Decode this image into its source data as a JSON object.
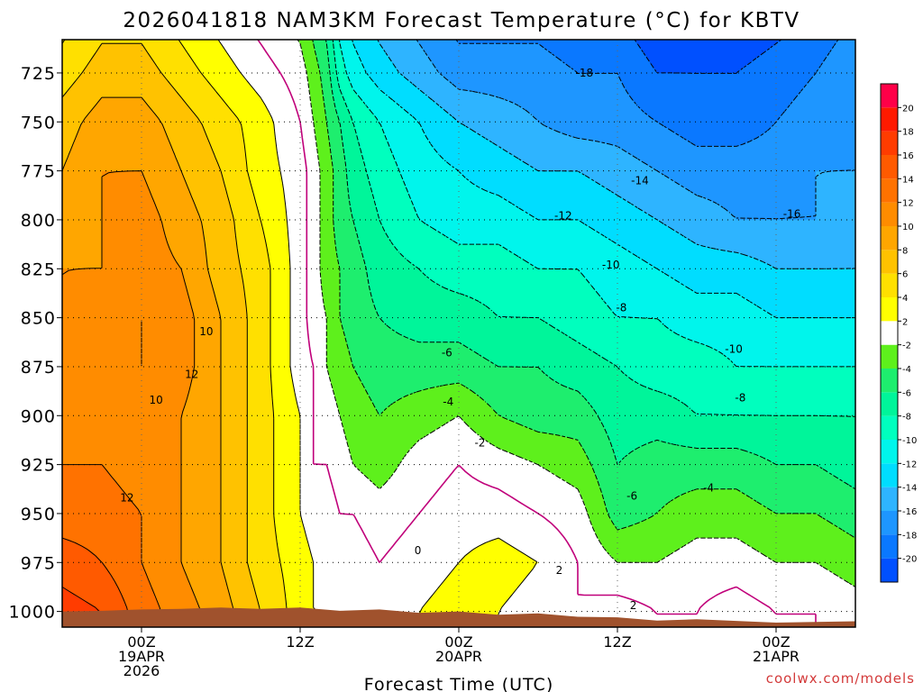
{
  "chart_data": {
    "type": "heatmap",
    "title": "2026041818 NAM3KM Forecast Temperature (°C) for KBTV",
    "xlabel": "Forecast Time (UTC)",
    "ylabel": "",
    "x_unit": "hours from 18Z 18APR2026",
    "xlim": [
      0,
      60
    ],
    "ylim": [
      1008,
      708
    ],
    "yticks": [
      725,
      750,
      775,
      800,
      825,
      850,
      875,
      900,
      925,
      950,
      975,
      1000
    ],
    "ytick_labels": [
      "725",
      "750",
      "775",
      "800",
      "825",
      "850",
      "875",
      "900",
      "925",
      "950",
      "975",
      "1000"
    ],
    "xticks": [
      {
        "x": 6,
        "lines": [
          "00Z",
          "19APR",
          "2026"
        ]
      },
      {
        "x": 18,
        "lines": [
          "12Z"
        ]
      },
      {
        "x": 30,
        "lines": [
          "00Z",
          "20APR"
        ]
      },
      {
        "x": 42,
        "lines": [
          "12Z"
        ]
      },
      {
        "x": 54,
        "lines": [
          "00Z",
          "21APR"
        ]
      }
    ],
    "colorbar": {
      "levels": [
        -22,
        -20,
        -18,
        -16,
        -14,
        -12,
        -10,
        -8,
        -6,
        -4,
        -2,
        2,
        4,
        6,
        8,
        10,
        12,
        14,
        16,
        18,
        20,
        22
      ],
      "labels": [
        "-20",
        "-18",
        "-16",
        "-14",
        "-12",
        "-10",
        "-8",
        "-6",
        "-4",
        "-2",
        "2",
        "4",
        "6",
        "8",
        "10",
        "12",
        "14",
        "16",
        "18",
        "20"
      ],
      "colors": [
        "#0050ff",
        "#0a78ff",
        "#1e96ff",
        "#2eb4ff",
        "#00ddff",
        "#00f5ec",
        "#00ffbe",
        "#00f59a",
        "#1eee6e",
        "#5ef01c",
        "#ffffff",
        "#ffff00",
        "#ffe000",
        "#ffc200",
        "#ffa600",
        "#ff8c00",
        "#ff7200",
        "#ff5a00",
        "#ff3c00",
        "#ff1a00",
        "#ff0048"
      ]
    },
    "ground_color": "#a0522d",
    "surface_pressure_hpa": [
      1000,
      999,
      999,
      998,
      998,
      998,
      998,
      999,
      999,
      1000,
      1000,
      1001,
      1001,
      1002,
      1003,
      1004,
      1004,
      1005,
      1005
    ],
    "surface_x_hours": [
      0,
      3,
      6,
      9,
      12,
      15,
      18,
      21,
      24,
      27,
      30,
      33,
      36,
      39,
      42,
      45,
      48,
      54,
      60
    ],
    "temperature_grid": {
      "pressure_hpa": [
        710,
        725,
        750,
        775,
        800,
        825,
        850,
        875,
        900,
        925,
        950,
        975,
        1000,
        1008
      ],
      "times_hours": [
        0,
        3,
        6,
        9,
        12,
        15,
        18,
        19,
        20,
        21,
        22,
        24,
        27,
        30,
        33,
        36,
        39,
        42,
        45,
        48,
        51,
        54,
        57,
        60
      ],
      "rows": [
        [
          4,
          6,
          6,
          4,
          2,
          0,
          -2,
          -4,
          -6,
          -10,
          -12,
          -14,
          -16,
          -18,
          -18,
          -18,
          -19,
          -19,
          -21,
          -21,
          -21,
          -20,
          -19,
          -17
        ],
        [
          5,
          7,
          7,
          5,
          3,
          1,
          -1,
          -3,
          -5,
          -9,
          -11,
          -13,
          -15,
          -17,
          -17,
          -17,
          -18,
          -18,
          -20,
          -20,
          -20,
          -19,
          -18,
          -16
        ],
        [
          7,
          9,
          9,
          7,
          5,
          3,
          0,
          -2,
          -4,
          -6,
          -8,
          -10,
          -12,
          -14,
          -15,
          -16,
          -17,
          -17,
          -18,
          -19,
          -19,
          -18,
          -17,
          -16
        ],
        [
          8,
          10,
          10,
          8,
          6,
          3,
          1,
          -1,
          -3,
          -5,
          -7,
          -9,
          -11,
          -12,
          -13,
          -14,
          -14,
          -15,
          -16,
          -17,
          -17,
          -17,
          -16,
          -16
        ],
        [
          9,
          10,
          11,
          9,
          7,
          4,
          1,
          -1,
          -3,
          -5,
          -6,
          -8,
          -10,
          -11,
          -11,
          -12,
          -12,
          -13,
          -14,
          -15,
          -16,
          -16,
          -16,
          -15
        ],
        [
          10,
          10,
          11,
          10,
          7,
          5,
          1,
          -1,
          -3,
          -4,
          -5,
          -7,
          -8,
          -9,
          -9,
          -10,
          -10,
          -11,
          -12,
          -13,
          -13,
          -14,
          -14,
          -14
        ],
        [
          10,
          11,
          12,
          11,
          8,
          5,
          1,
          -1,
          -2,
          -4,
          -5,
          -6,
          -7,
          -7,
          -8,
          -8,
          -9,
          -10,
          -10,
          -11,
          -11,
          -12,
          -12,
          -12
        ],
        [
          10,
          11,
          12,
          11,
          8,
          5,
          1,
          0,
          -2,
          -3,
          -4,
          -5,
          -5,
          -5,
          -6,
          -6,
          -7,
          -8,
          -9,
          -9,
          -10,
          -10,
          -10,
          -10
        ],
        [
          11,
          11,
          11,
          10,
          8,
          5,
          2,
          0,
          -1,
          -2,
          -3,
          -4,
          -3,
          -2,
          -4,
          -5,
          -5,
          -7,
          -7,
          -8,
          -8,
          -8,
          -8,
          -8
        ],
        [
          12,
          12,
          11,
          10,
          8,
          5,
          2,
          0,
          0,
          -1,
          -2,
          -3,
          -1,
          0,
          -1,
          -2,
          -3,
          -6,
          -5,
          -5,
          -5,
          -6,
          -6,
          -7
        ],
        [
          13,
          13,
          12,
          10,
          8,
          5,
          2,
          1,
          1,
          0,
          0,
          -1,
          0,
          1,
          1,
          0,
          -1,
          -5,
          -4,
          -3,
          -3,
          -4,
          -4,
          -5
        ],
        [
          15,
          14,
          12,
          10,
          8,
          5,
          3,
          2,
          1,
          1,
          1,
          0,
          1,
          2,
          3,
          2,
          0,
          -2,
          -2,
          -1,
          -1,
          -2,
          -2,
          -3
        ],
        [
          17,
          16,
          13,
          11,
          9,
          6,
          3,
          2,
          2,
          2,
          2,
          1,
          2,
          3,
          2,
          1,
          0,
          1,
          0,
          0,
          1,
          0,
          0,
          -1
        ],
        [
          17,
          16,
          13,
          11,
          9,
          6,
          3,
          2,
          2,
          2,
          2,
          1,
          2,
          3,
          2,
          1,
          0,
          1,
          0,
          0,
          1,
          0,
          0,
          -1
        ]
      ]
    },
    "contour_labels": [
      {
        "text": "-18",
        "x": 39.5,
        "p": 725
      },
      {
        "text": "-16",
        "x": 55.2,
        "p": 797
      },
      {
        "text": "-14",
        "x": 43.7,
        "p": 780
      },
      {
        "text": "-12",
        "x": 37.9,
        "p": 798
      },
      {
        "text": "-10",
        "x": 41.5,
        "p": 823
      },
      {
        "text": "-8",
        "x": 42.3,
        "p": 845
      },
      {
        "text": "-10",
        "x": 50.8,
        "p": 866
      },
      {
        "text": "-6",
        "x": 29.1,
        "p": 868
      },
      {
        "text": "-8",
        "x": 51.3,
        "p": 891
      },
      {
        "text": "-4",
        "x": 29.2,
        "p": 893
      },
      {
        "text": "-2",
        "x": 31.6,
        "p": 914
      },
      {
        "text": "-6",
        "x": 43.1,
        "p": 941
      },
      {
        "text": "-4",
        "x": 48.9,
        "p": 937
      },
      {
        "text": "0",
        "x": 26.9,
        "p": 969
      },
      {
        "text": "2",
        "x": 37.6,
        "p": 979
      },
      {
        "text": "2",
        "x": 43.2,
        "p": 997
      },
      {
        "text": "12",
        "x": 4.9,
        "p": 942
      },
      {
        "text": "10",
        "x": 7.1,
        "p": 892
      },
      {
        "text": "12",
        "x": 9.8,
        "p": 879
      },
      {
        "text": "10",
        "x": 10.9,
        "p": 857
      }
    ]
  },
  "watermark": "coolwx.com/models",
  "colors": {
    "frame": "#000000",
    "watermark": "#d33a3a",
    "zero_line": "#c0007a"
  }
}
